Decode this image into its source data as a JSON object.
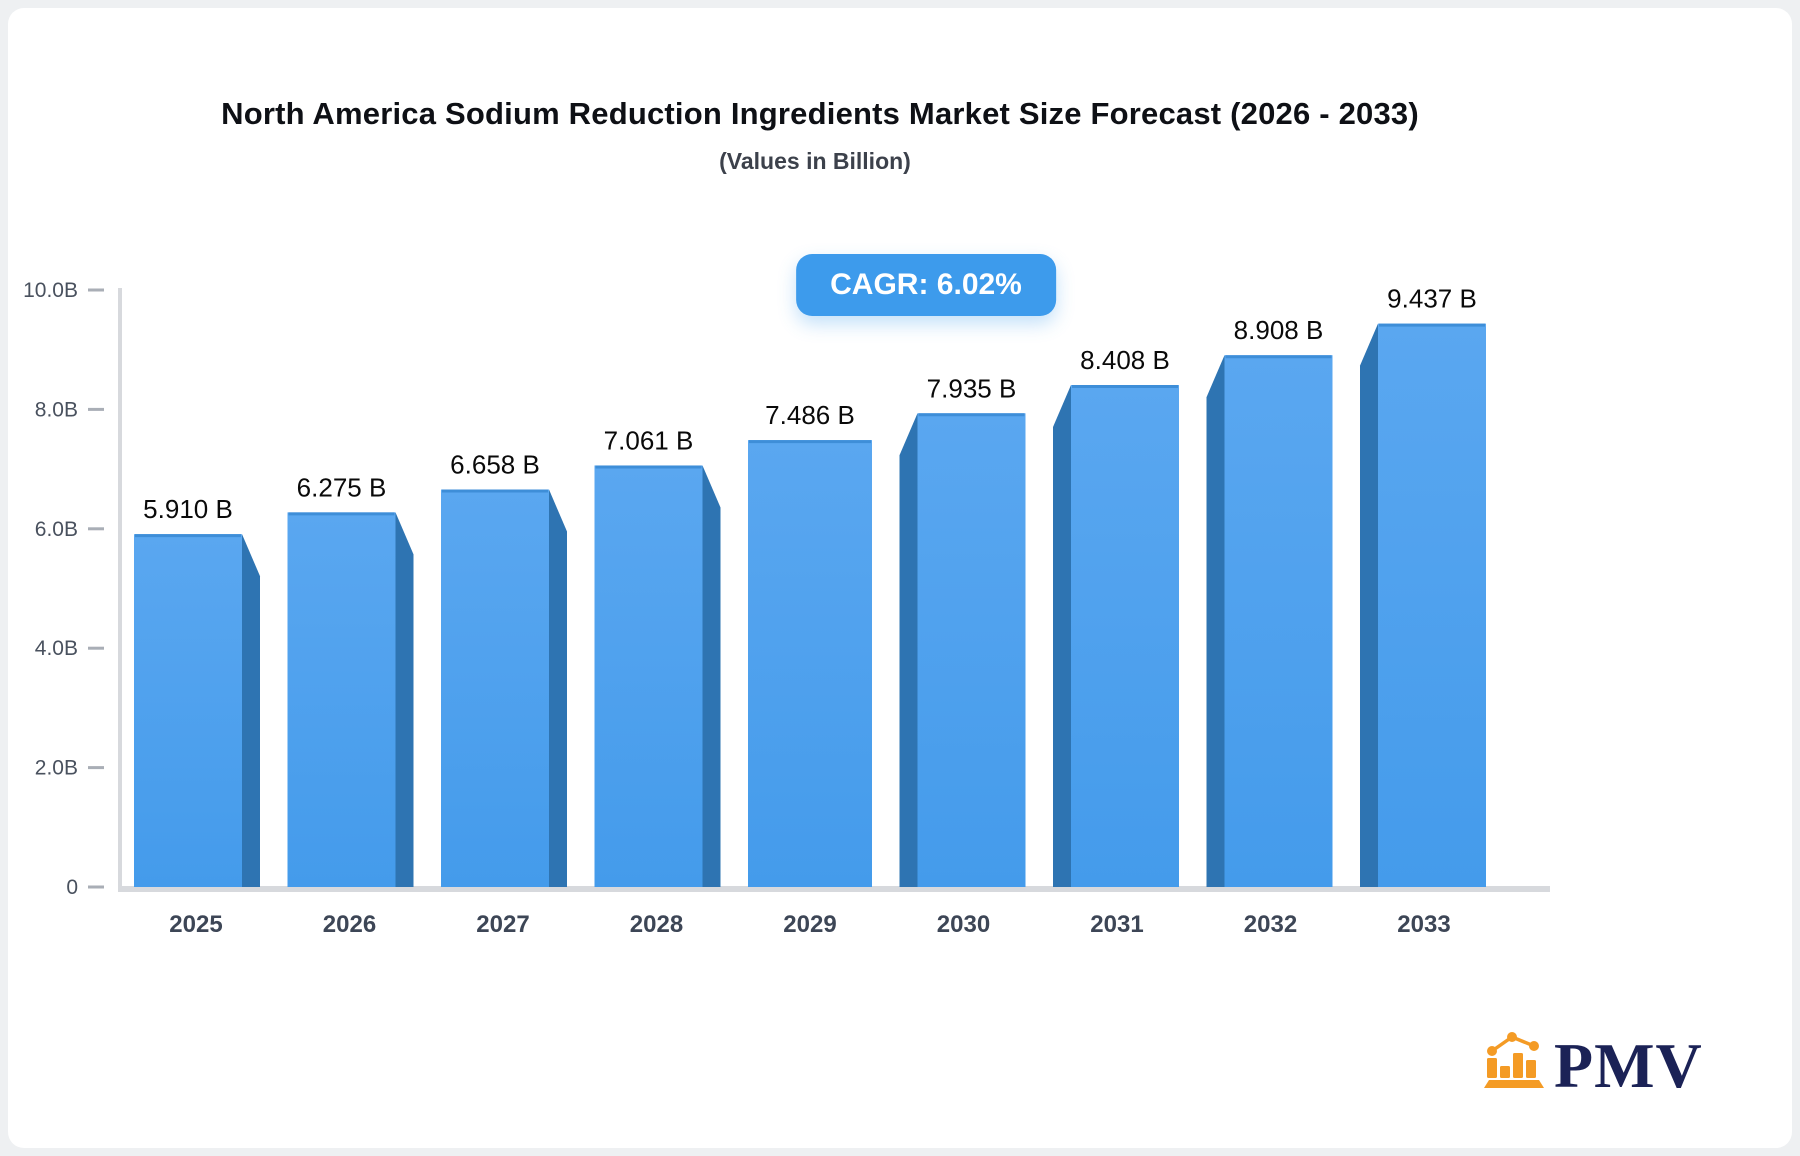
{
  "header": {
    "title": "North America Sodium Reduction Ingredients Market Size Forecast (2026 - 2033)",
    "subtitle": "(Values in Billion)",
    "badge": "CAGR: 6.02%"
  },
  "chart_data": {
    "type": "bar",
    "title": "North America Sodium Reduction Ingredients Market Size Forecast (2026 - 2033)",
    "subtitle": "(Values in Billion)",
    "categories": [
      "2025",
      "2026",
      "2027",
      "2028",
      "2029",
      "2030",
      "2031",
      "2032",
      "2033"
    ],
    "values": [
      5.91,
      6.275,
      6.658,
      7.061,
      7.486,
      7.935,
      8.408,
      8.908,
      9.437
    ],
    "bar_labels": [
      "5.910 B",
      "6.275 B",
      "6.658 B",
      "7.061 B",
      "7.486 B",
      "7.935 B",
      "8.408 B",
      "8.908 B",
      "9.437 B"
    ],
    "unit": "Billion",
    "xlabel": "",
    "ylabel": "",
    "ylim": [
      0,
      10
    ],
    "yticks": [
      {
        "value": 0,
        "label": "0"
      },
      {
        "value": 2,
        "label": "2.0B"
      },
      {
        "value": 4,
        "label": "4.0B"
      },
      {
        "value": 6,
        "label": "6.0B"
      },
      {
        "value": 8,
        "label": "8.0B"
      },
      {
        "value": 10,
        "label": "10.0B"
      }
    ],
    "grid": false,
    "legend": false,
    "bar_style": "3d",
    "cagr": "6.02%"
  },
  "logo": {
    "text": "PMV"
  },
  "colors": {
    "background": "#EEF0F2",
    "card": "#FFFFFF",
    "badge_bg": "#3D9BEC",
    "badge_text": "#FFFFFF",
    "title_text": "#0E1015",
    "subtitle_text": "#3C414B",
    "bar_front_top": "#5AA7F0",
    "bar_front_bottom": "#449BEB",
    "bar_side": "#2E74B2",
    "bar_top_edge": "#3E8ED8",
    "axis_line": "#D7D9DD",
    "tick_mark": "#A9AEB6",
    "y_tick_label": "#49515E",
    "x_tick_label": "#3D4656",
    "value_label": "#0A0A0A",
    "logo_orange": "#F49B25",
    "logo_navy": "#1B2256"
  }
}
